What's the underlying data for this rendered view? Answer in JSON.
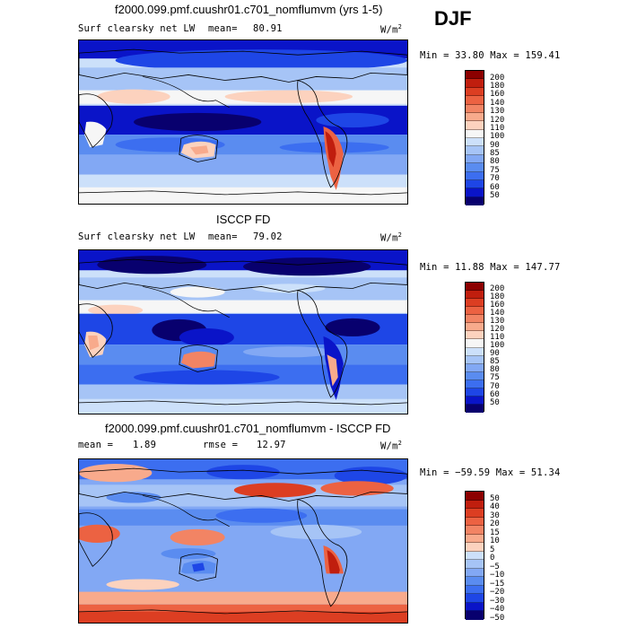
{
  "season": "DJF",
  "colors": {
    "ramp_abs": [
      "#08006e",
      "#0a14c8",
      "#1e46e6",
      "#3c6ef0",
      "#5a8cf0",
      "#82a8f4",
      "#a6c4f6",
      "#cce0fa",
      "#f6f6f6",
      "#fcd2be",
      "#f8aa8c",
      "#f28464",
      "#ec6242",
      "#dc3e22",
      "#c01e0e",
      "#8c0000"
    ],
    "ramp_diff": [
      "#08006e",
      "#0a14c8",
      "#1e46e6",
      "#3c6ef0",
      "#5a8cf0",
      "#82a8f4",
      "#a6c4f6",
      "#cce0fa",
      "#fcd2be",
      "#f8aa8c",
      "#f28464",
      "#ec6242",
      "#dc3e22",
      "#c01e0e",
      "#8c0000"
    ]
  },
  "panels": [
    {
      "title": "f2000.099.pmf.cuushr01.c701_nomflumvm (yrs 1-5)",
      "variable": "Surf clearsky net LW",
      "stat_label": "mean=",
      "stat_value": "80.91",
      "units": "W/m",
      "units_exp": "2",
      "minmax": "Min =  33.80 Max = 159.41",
      "ticks": [
        "200",
        "180",
        "160",
        "140",
        "130",
        "120",
        "110",
        "100",
        "90",
        "85",
        "80",
        "75",
        "70",
        "60",
        "50"
      ],
      "map_type": "model"
    },
    {
      "title": "ISCCP FD",
      "variable": "Surf clearsky net LW",
      "stat_label": "mean=",
      "stat_value": "79.02",
      "units": "W/m",
      "units_exp": "2",
      "minmax": "Min =  11.88 Max = 147.77",
      "ticks": [
        "200",
        "180",
        "160",
        "140",
        "130",
        "120",
        "110",
        "100",
        "90",
        "85",
        "80",
        "75",
        "70",
        "60",
        "50"
      ],
      "map_type": "obs"
    },
    {
      "title": "f2000.099.pmf.cuushr01.c701_nomflumvm - ISCCP FD",
      "stat_label": "mean =",
      "stat_value": "1.89",
      "rmse_label": "rmse =",
      "rmse_value": "12.97",
      "units": "W/m",
      "units_exp": "2",
      "minmax": "Min = −59.59 Max =  51.34",
      "ticks": [
        "50",
        "40",
        "30",
        "20",
        "15",
        "10",
        "5",
        "0",
        "−5",
        "−10",
        "−15",
        "−20",
        "−30",
        "−40",
        "−50"
      ],
      "map_type": "diff"
    }
  ]
}
